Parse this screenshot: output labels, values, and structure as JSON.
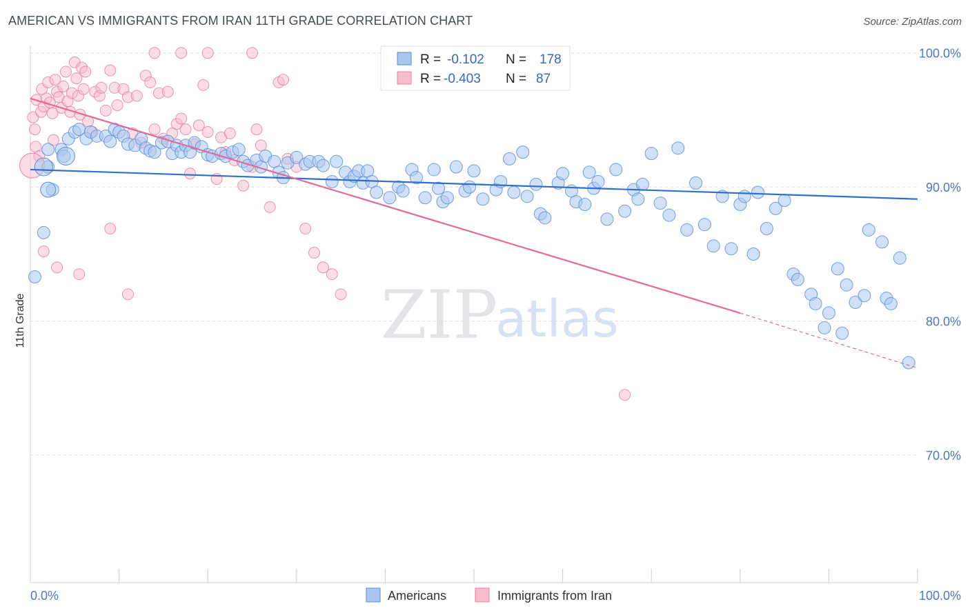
{
  "header": {
    "title": "AMERICAN VS IMMIGRANTS FROM IRAN 11TH GRADE CORRELATION CHART",
    "source": "Source: ZipAtlas.com"
  },
  "watermark": {
    "part1": "ZIP",
    "part2": "atlas"
  },
  "colors": {
    "blue_fill": "#a9c6ee",
    "blue_stroke": "#5b8fd6",
    "blue_line": "#2f6fca",
    "pink_fill": "#f6bccd",
    "pink_stroke": "#e8839f",
    "pink_line": "#e2699a",
    "grid": "#d9dde3",
    "tick_text": "#4a78c2"
  },
  "legend": {
    "rows": [
      {
        "r_label": "R =",
        "r_value": "-0.102",
        "n_label": "N =",
        "n_value": "178"
      },
      {
        "r_label": "R =",
        "r_value": "-0.403",
        "n_label": "N =",
        "n_value": "87"
      }
    ]
  },
  "bottom_legend": {
    "americans": "Americans",
    "iran": "Immigrants from Iran"
  },
  "chart_data": {
    "type": "scatter",
    "ylabel": "11th Grade",
    "xlim": [
      0,
      100
    ],
    "ylim": [
      60.5,
      100.5
    ],
    "x_tick_labels": [
      "0.0%",
      "100.0%"
    ],
    "y_ticks": [
      100,
      90,
      80,
      70
    ],
    "y_tick_labels": [
      "100.0%",
      "90.0%",
      "80.0%",
      "70.0%"
    ],
    "grid": "horizontal dashed",
    "legend_placement": "top-center",
    "series": [
      {
        "name": "Americans",
        "trend": {
          "x": [
            0,
            100
          ],
          "y": [
            91.3,
            89.1
          ],
          "style": "solid"
        },
        "points": [
          [
            0.5,
            83.3
          ],
          [
            1.5,
            86.6
          ],
          [
            2,
            91.5
          ],
          [
            2,
            92.8
          ],
          [
            2.5,
            89.8
          ],
          [
            3.5,
            92.8
          ],
          [
            3.8,
            92.3
          ],
          [
            4.3,
            93.6
          ],
          [
            5,
            94.1
          ],
          [
            5.5,
            94.3
          ],
          [
            6.3,
            93.6
          ],
          [
            6.8,
            94.1
          ],
          [
            7.5,
            93.8
          ],
          [
            8.5,
            93.8
          ],
          [
            9,
            93.4
          ],
          [
            9.5,
            94.3
          ],
          [
            10,
            94.1
          ],
          [
            10.5,
            93.8
          ],
          [
            11,
            93.2
          ],
          [
            11.8,
            93.1
          ],
          [
            12.5,
            93.6
          ],
          [
            13,
            92.9
          ],
          [
            13.5,
            92.7
          ],
          [
            14,
            92.6
          ],
          [
            14.8,
            93.3
          ],
          [
            15.5,
            93.4
          ],
          [
            16,
            92.5
          ],
          [
            16.5,
            93.1
          ],
          [
            17,
            92.6
          ],
          [
            17.5,
            93.1
          ],
          [
            18,
            92.6
          ],
          [
            18.5,
            93.3
          ],
          [
            19.3,
            93.0
          ],
          [
            20,
            92.4
          ],
          [
            20.5,
            92.3
          ],
          [
            21.5,
            92.5
          ],
          [
            22,
            92.3
          ],
          [
            22.8,
            92.6
          ],
          [
            23.5,
            92.8
          ],
          [
            24,
            91.9
          ],
          [
            24.5,
            91.6
          ],
          [
            25.5,
            92.0
          ],
          [
            26,
            91.5
          ],
          [
            26.5,
            92.3
          ],
          [
            27.5,
            91.9
          ],
          [
            28,
            91.1
          ],
          [
            28.5,
            90.7
          ],
          [
            29,
            91.8
          ],
          [
            30,
            92.2
          ],
          [
            31,
            91.7
          ],
          [
            31.5,
            91.9
          ],
          [
            32.5,
            91.9
          ],
          [
            33,
            91.6
          ],
          [
            34,
            90.4
          ],
          [
            34.5,
            91.9
          ],
          [
            35.5,
            91.1
          ],
          [
            36,
            90.4
          ],
          [
            36.5,
            90.8
          ],
          [
            37,
            91.2
          ],
          [
            37.5,
            90.3
          ],
          [
            38,
            91.2
          ],
          [
            38.5,
            90.4
          ],
          [
            39,
            89.6
          ],
          [
            40.5,
            89.2
          ],
          [
            41.5,
            90.0
          ],
          [
            42,
            89.7
          ],
          [
            43,
            91.3
          ],
          [
            43.5,
            90.7
          ],
          [
            44.5,
            89.2
          ],
          [
            45.5,
            91.3
          ],
          [
            46,
            89.9
          ],
          [
            46.5,
            88.9
          ],
          [
            47,
            89.2
          ],
          [
            48,
            91.5
          ],
          [
            49,
            89.7
          ],
          [
            49.5,
            90.0
          ],
          [
            50,
            91.2
          ],
          [
            51,
            89.1
          ],
          [
            52.5,
            89.8
          ],
          [
            53,
            90.4
          ],
          [
            54,
            92.1
          ],
          [
            54.5,
            89.6
          ],
          [
            55.5,
            92.6
          ],
          [
            56,
            89.3
          ],
          [
            57,
            90.2
          ],
          [
            57.5,
            88.0
          ],
          [
            58,
            87.7
          ],
          [
            59.5,
            90.3
          ],
          [
            60,
            91.0
          ],
          [
            61,
            89.7
          ],
          [
            61.5,
            88.9
          ],
          [
            62.5,
            88.7
          ],
          [
            63,
            91.1
          ],
          [
            63.5,
            89.9
          ],
          [
            64,
            90.4
          ],
          [
            65,
            87.6
          ],
          [
            66,
            91.3
          ],
          [
            67,
            88.2
          ],
          [
            68,
            89.8
          ],
          [
            68.5,
            89.1
          ],
          [
            69,
            90.2
          ],
          [
            70,
            92.5
          ],
          [
            71,
            88.8
          ],
          [
            72,
            87.9
          ],
          [
            73,
            92.9
          ],
          [
            74,
            86.8
          ],
          [
            75,
            90.3
          ],
          [
            76,
            87.2
          ],
          [
            77,
            85.6
          ],
          [
            78,
            89.3
          ],
          [
            79,
            85.4
          ],
          [
            80,
            88.7
          ],
          [
            80.5,
            89.3
          ],
          [
            81.5,
            85.0
          ],
          [
            82,
            89.6
          ],
          [
            83,
            86.9
          ],
          [
            84,
            88.4
          ],
          [
            85,
            89.0
          ],
          [
            86,
            83.5
          ],
          [
            86.5,
            83.1
          ],
          [
            88,
            82.0
          ],
          [
            88.5,
            81.3
          ],
          [
            89.5,
            79.5
          ],
          [
            90,
            80.6
          ],
          [
            91,
            83.9
          ],
          [
            91.5,
            79.1
          ],
          [
            92,
            82.7
          ],
          [
            93,
            81.4
          ],
          [
            94,
            81.9
          ],
          [
            94.5,
            86.8
          ],
          [
            96,
            85.9
          ],
          [
            96.5,
            81.7
          ],
          [
            97,
            81.3
          ],
          [
            98,
            84.7
          ],
          [
            99,
            76.9
          ]
        ]
      },
      {
        "name": "Immigrants from Iran",
        "trend": {
          "x": [
            0,
            80,
            100
          ],
          "y": [
            96.6,
            80.6,
            76.5
          ],
          "style": "solid-then-dashed"
        },
        "points": [
          [
            0.3,
            95.2
          ],
          [
            0.5,
            94.3
          ],
          [
            0.6,
            93.0
          ],
          [
            0.7,
            96.5
          ],
          [
            1,
            92.3
          ],
          [
            1.2,
            95.6
          ],
          [
            1.3,
            97.3
          ],
          [
            1.5,
            96.0
          ],
          [
            1.8,
            96.6
          ],
          [
            2,
            97.8
          ],
          [
            2.2,
            96.3
          ],
          [
            2.5,
            95.5
          ],
          [
            2.6,
            93.5
          ],
          [
            2.8,
            98.0
          ],
          [
            3,
            97.1
          ],
          [
            3.2,
            96.7
          ],
          [
            3.5,
            95.9
          ],
          [
            3.7,
            97.5
          ],
          [
            4,
            98.6
          ],
          [
            4.2,
            96.4
          ],
          [
            4.5,
            95.6
          ],
          [
            4.7,
            97.0
          ],
          [
            5,
            99.3
          ],
          [
            5.2,
            98.1
          ],
          [
            5.4,
            96.8
          ],
          [
            5.6,
            95.4
          ],
          [
            5.8,
            98.9
          ],
          [
            6,
            97.3
          ],
          [
            6.2,
            98.6
          ],
          [
            6.5,
            94.9
          ],
          [
            7,
            94.1
          ],
          [
            7.3,
            97.1
          ],
          [
            7.8,
            96.8
          ],
          [
            8,
            97.4
          ],
          [
            8.5,
            95.7
          ],
          [
            9,
            98.7
          ],
          [
            9.5,
            97.4
          ],
          [
            9.8,
            96.1
          ],
          [
            10.5,
            97.3
          ],
          [
            11,
            96.7
          ],
          [
            11.5,
            94.0
          ],
          [
            12,
            96.8
          ],
          [
            12.5,
            93.3
          ],
          [
            13,
            98.3
          ],
          [
            13.5,
            97.8
          ],
          [
            14,
            94.3
          ],
          [
            14.5,
            97.0
          ],
          [
            15,
            93.6
          ],
          [
            15.5,
            97.1
          ],
          [
            16,
            94.0
          ],
          [
            16.5,
            94.7
          ],
          [
            17,
            95.1
          ],
          [
            17.5,
            94.3
          ],
          [
            18,
            91.0
          ],
          [
            18.5,
            93.2
          ],
          [
            19,
            94.6
          ],
          [
            19.5,
            97.6
          ],
          [
            20,
            94.1
          ],
          [
            21,
            90.6
          ],
          [
            21.5,
            93.7
          ],
          [
            22,
            92.6
          ],
          [
            22.5,
            94.0
          ],
          [
            23,
            92.0
          ],
          [
            24,
            90.1
          ],
          [
            25,
            91.5
          ],
          [
            25.5,
            94.3
          ],
          [
            26,
            93.1
          ],
          [
            27,
            88.5
          ],
          [
            28,
            97.8
          ],
          [
            28.5,
            98.0
          ],
          [
            29,
            92.1
          ],
          [
            30,
            91.5
          ],
          [
            31,
            86.9
          ],
          [
            32,
            85.1
          ],
          [
            33,
            84.0
          ],
          [
            34,
            83.5
          ],
          [
            35,
            82.0
          ],
          [
            1.5,
            85.2
          ],
          [
            3,
            84.0
          ],
          [
            5.5,
            83.5
          ],
          [
            9,
            86.9
          ],
          [
            11,
            82.0
          ],
          [
            14,
            100.0
          ],
          [
            17,
            100.0
          ],
          [
            20,
            100.0
          ],
          [
            25,
            100.0
          ],
          [
            67,
            74.5
          ]
        ]
      }
    ]
  }
}
